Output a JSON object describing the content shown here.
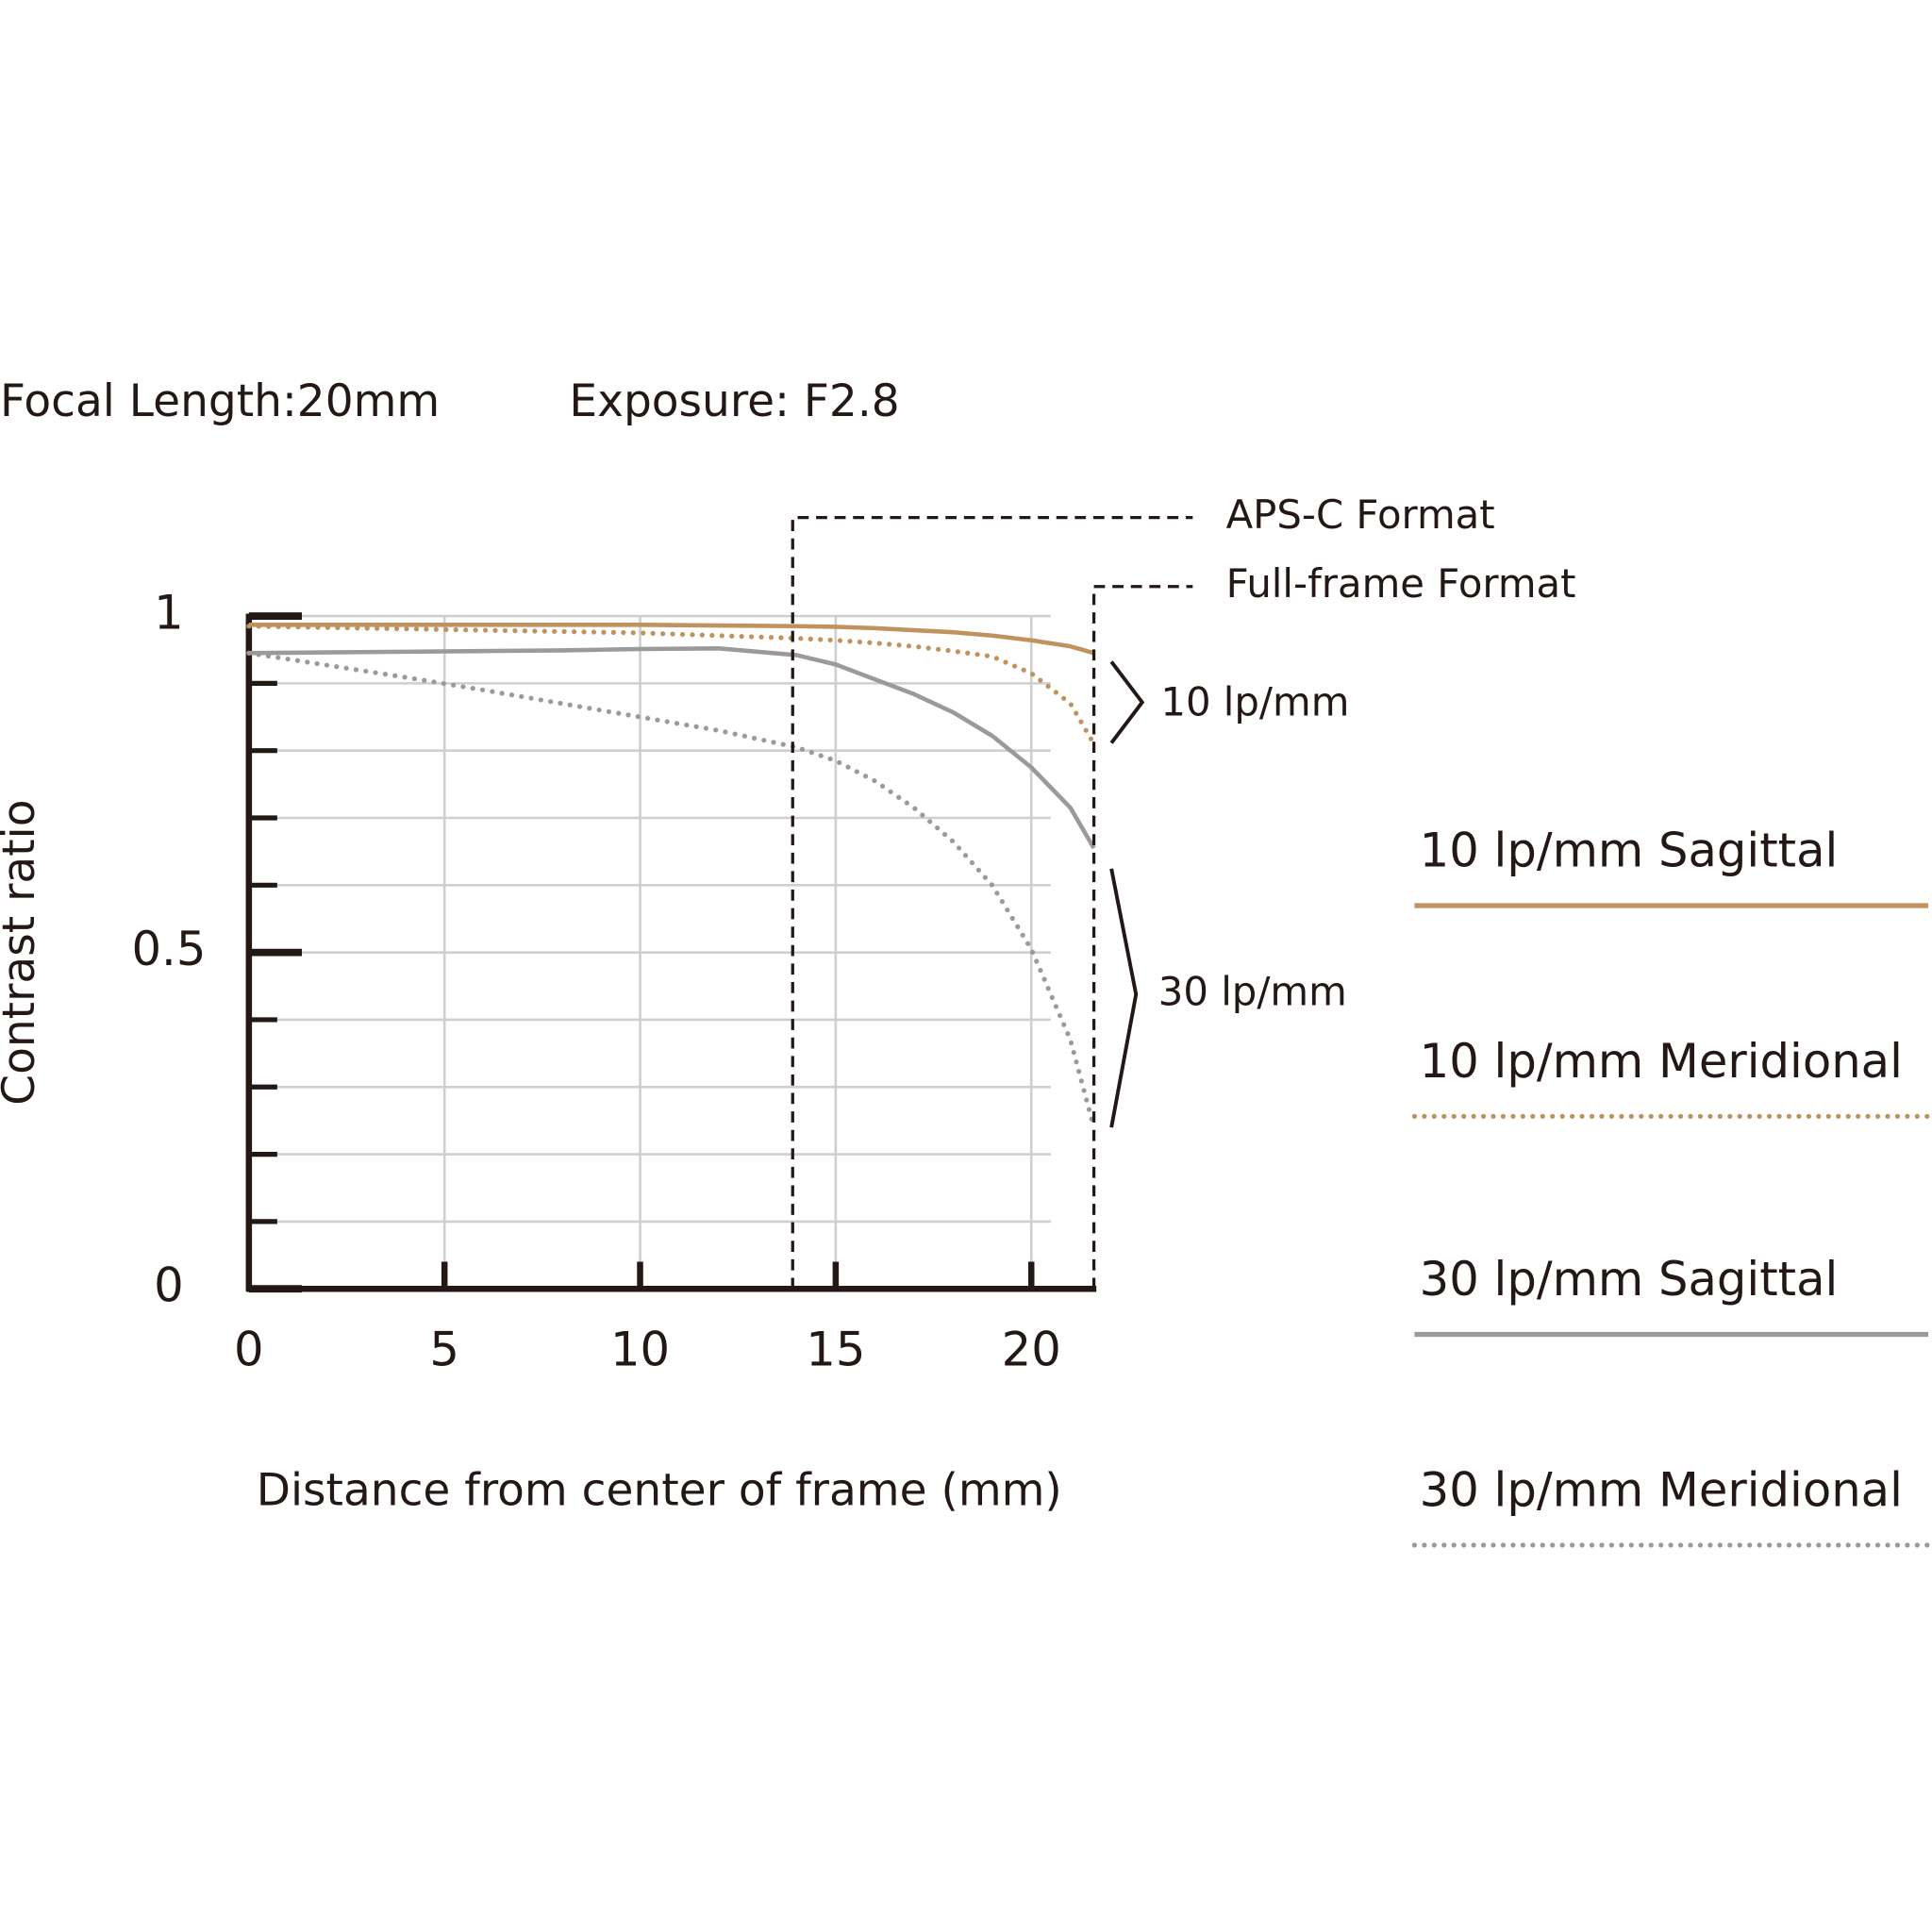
{
  "chart_data": {
    "type": "line",
    "subtitle": "Focal Length:20mm",
    "exposure": "Exposure: F2.8",
    "x_label": "Distance from center of frame (mm)",
    "y_label": "Contrast ratio",
    "xlim": [
      0,
      21.6
    ],
    "ylim": [
      0,
      1
    ],
    "xticks": [
      0,
      5,
      10,
      15,
      20
    ],
    "yticks": [
      0,
      0.5,
      1
    ],
    "yticks_minor": [
      0.1,
      0.2,
      0.3,
      0.4,
      0.6,
      0.7,
      0.8,
      0.9
    ],
    "grid": true,
    "x": [
      0,
      2,
      4,
      6,
      8,
      10,
      12,
      14,
      15,
      16,
      17,
      18,
      19,
      20,
      21,
      21.6
    ],
    "series": [
      {
        "name": "10 lp/mm Sagittal",
        "color": "#c0935e",
        "dotted": false,
        "values": [
          0.987,
          0.987,
          0.987,
          0.987,
          0.987,
          0.987,
          0.986,
          0.985,
          0.984,
          0.982,
          0.979,
          0.976,
          0.971,
          0.964,
          0.955,
          0.945
        ]
      },
      {
        "name": "10 lp/mm Meridional",
        "color": "#c0935e",
        "dotted": true,
        "values": [
          0.985,
          0.983,
          0.981,
          0.979,
          0.977,
          0.975,
          0.971,
          0.967,
          0.964,
          0.96,
          0.955,
          0.948,
          0.94,
          0.915,
          0.87,
          0.81
        ]
      },
      {
        "name": "30 lp/mm Sagittal",
        "color": "#9a9a9a",
        "dotted": false,
        "values": [
          0.945,
          0.946,
          0.947,
          0.948,
          0.949,
          0.951,
          0.952,
          0.942,
          0.928,
          0.906,
          0.884,
          0.857,
          0.822,
          0.775,
          0.715,
          0.655
        ]
      },
      {
        "name": "30 lp/mm Meridional",
        "color": "#9a9a9a",
        "dotted": true,
        "values": [
          0.945,
          0.927,
          0.909,
          0.89,
          0.87,
          0.85,
          0.83,
          0.805,
          0.785,
          0.755,
          0.715,
          0.665,
          0.6,
          0.505,
          0.37,
          0.24
        ]
      }
    ],
    "format_lines": [
      {
        "label": "APS-C Format",
        "x": 13.9
      },
      {
        "label": "Full-frame Format",
        "x": 21.6
      }
    ],
    "groups": [
      "10 lp/mm",
      "30 lp/mm"
    ]
  }
}
